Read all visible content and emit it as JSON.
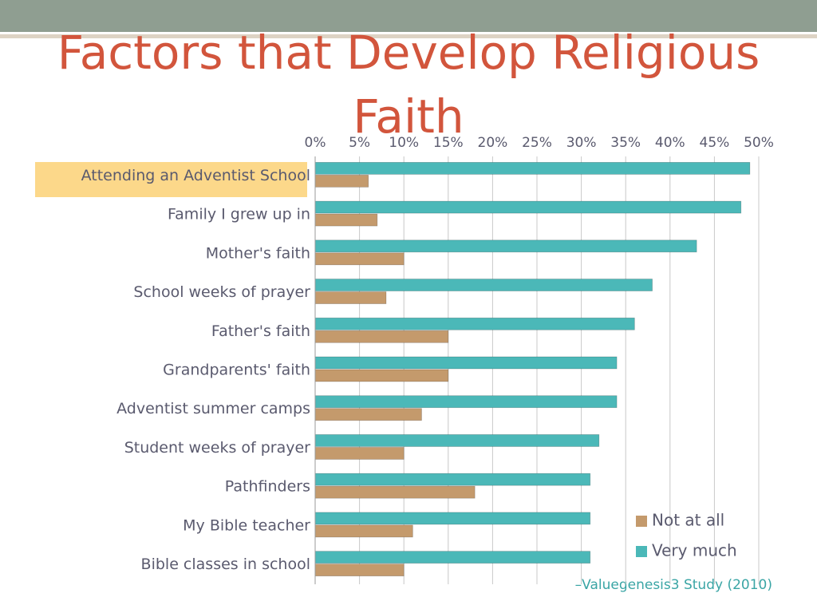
{
  "chart_data": {
    "type": "bar",
    "orientation": "horizontal",
    "title": "Factors that Develop Religious Faith",
    "source": "–Valuegenesis3 Study (2010)",
    "categories": [
      "Attending an Adventist School",
      "Family I grew up in",
      "Mother's faith",
      "School weeks of prayer",
      "Father's faith",
      "Grandparents' faith",
      "Adventist summer camps",
      "Student weeks of prayer",
      "Pathfinders",
      "My Bible teacher",
      "Bible classes in school"
    ],
    "series": [
      {
        "name": "Not at all",
        "color": "#c49a6c",
        "values": [
          6,
          7,
          10,
          8,
          15,
          15,
          12,
          10,
          18,
          11,
          10
        ]
      },
      {
        "name": "Very much",
        "color": "#4bb8b8",
        "values": [
          49,
          48,
          43,
          38,
          36,
          34,
          34,
          32,
          31,
          31,
          31
        ]
      }
    ],
    "xlim": [
      0,
      50
    ],
    "xticks": [
      {
        "value": 0,
        "label": "0%"
      },
      {
        "value": 5,
        "label": "5%"
      },
      {
        "value": 10,
        "label": "10%"
      },
      {
        "value": 15,
        "label": "15%"
      },
      {
        "value": 20,
        "label": "20%"
      },
      {
        "value": 25,
        "label": "25%"
      },
      {
        "value": 30,
        "label": "30%"
      },
      {
        "value": 35,
        "label": "35%"
      },
      {
        "value": 40,
        "label": "40%"
      },
      {
        "value": 45,
        "label": "45%"
      },
      {
        "value": 50,
        "label": "50%"
      }
    ],
    "grid": true,
    "legend": "bottom-right"
  }
}
